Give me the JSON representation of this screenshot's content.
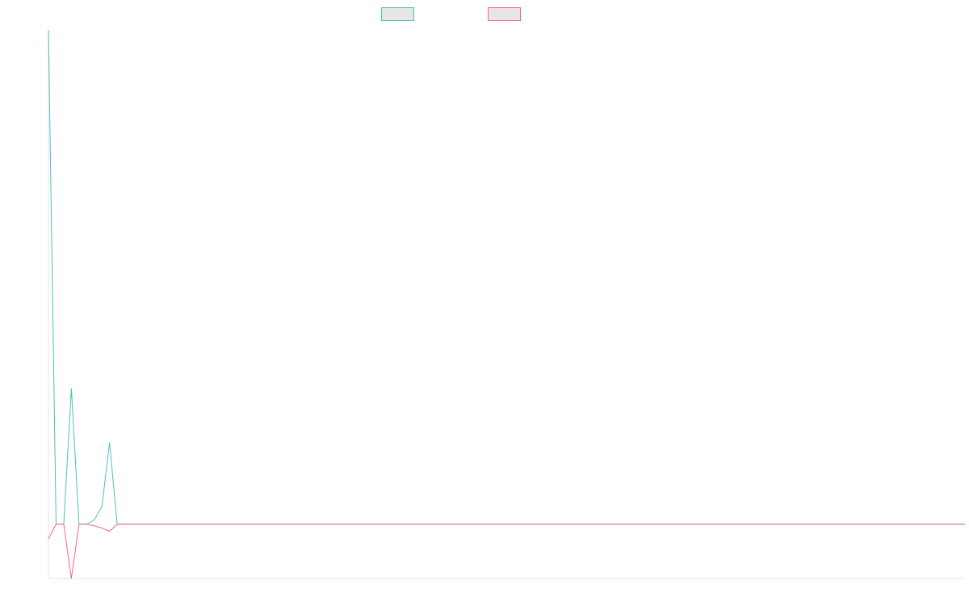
{
  "chart_data": {
    "type": "line",
    "title": "",
    "xlabel": "",
    "ylabel": "",
    "grid": false,
    "legend": "top-center",
    "x": [
      0,
      1,
      2,
      3,
      4,
      5,
      6,
      7,
      8,
      9,
      10,
      11,
      12,
      13,
      14,
      15,
      16,
      17,
      18,
      19,
      20,
      21,
      22,
      23,
      24,
      25,
      26,
      27,
      28,
      29,
      30,
      31,
      32,
      33,
      34,
      35,
      36,
      37,
      38,
      39,
      40,
      41,
      42,
      43,
      44,
      45,
      46,
      47,
      48,
      49,
      50,
      51,
      52,
      53,
      54,
      55,
      56,
      57,
      58,
      59,
      60,
      61,
      62,
      63,
      64,
      65,
      66,
      67,
      68,
      69,
      70,
      71,
      72,
      73,
      74,
      75,
      76,
      77,
      78,
      79,
      80,
      81,
      82,
      83,
      84,
      85,
      86,
      87,
      88,
      89,
      90,
      91,
      92,
      93,
      94,
      95,
      96,
      97,
      98,
      99,
      100,
      101,
      102,
      103,
      104,
      105,
      106,
      107,
      108,
      109,
      110,
      111,
      112,
      113,
      114,
      115,
      116,
      117,
      118,
      119,
      120
    ],
    "ylim": [
      -10,
      91
    ],
    "series": [
      {
        "color": "#4bc0c0",
        "values": [
          91,
          0,
          0,
          25,
          0,
          0,
          0.8,
          3.2,
          15,
          0,
          0,
          0,
          0,
          0,
          0,
          0,
          0,
          0,
          0,
          0,
          0,
          0,
          0,
          0,
          0,
          0,
          0,
          0,
          0,
          0,
          0,
          0,
          0,
          0,
          0,
          0,
          0,
          0,
          0,
          0,
          0,
          0,
          0,
          0,
          0,
          0,
          0,
          0,
          0,
          0,
          0,
          0,
          0,
          0,
          0,
          0,
          0,
          0,
          0,
          0,
          0,
          0,
          0,
          0,
          0,
          0,
          0,
          0,
          0,
          0,
          0,
          0,
          0,
          0,
          0,
          0,
          0,
          0,
          0,
          0,
          0,
          0,
          0,
          0,
          0,
          0,
          0,
          0,
          0,
          0,
          0,
          0,
          0,
          0,
          0,
          0,
          0,
          0,
          0,
          0,
          0,
          0,
          0,
          0,
          0,
          0,
          0,
          0,
          0,
          0,
          0,
          0,
          0,
          0,
          0,
          0,
          0,
          0,
          0,
          0,
          0
        ]
      },
      {
        "color": "#ff6384",
        "values": [
          -2.7,
          0,
          0,
          -10,
          0,
          0,
          -0.3,
          -0.7,
          -1.3,
          0,
          0,
          0,
          0,
          0,
          0,
          0,
          0,
          0,
          0,
          0,
          0,
          0,
          0,
          0,
          0,
          0,
          0,
          0,
          0,
          0,
          0,
          0,
          0,
          0,
          0,
          0,
          0,
          0,
          0,
          0,
          0,
          0,
          0,
          0,
          0,
          0,
          0,
          0,
          0,
          0,
          0,
          0,
          0,
          0,
          0,
          0,
          0,
          0,
          0,
          0,
          0,
          0,
          0,
          0,
          0,
          0,
          0,
          0,
          0,
          0,
          0,
          0,
          0,
          0,
          0,
          0,
          0,
          0,
          0,
          0,
          0,
          0,
          0,
          0,
          0,
          0,
          0,
          0,
          0,
          0,
          0,
          0,
          0,
          0,
          0,
          0,
          0,
          0,
          0,
          0,
          0,
          0,
          0,
          0,
          0,
          0,
          0,
          0,
          0,
          0,
          0,
          0,
          0,
          0,
          0,
          0,
          0,
          0,
          0,
          0,
          0
        ]
      }
    ]
  }
}
